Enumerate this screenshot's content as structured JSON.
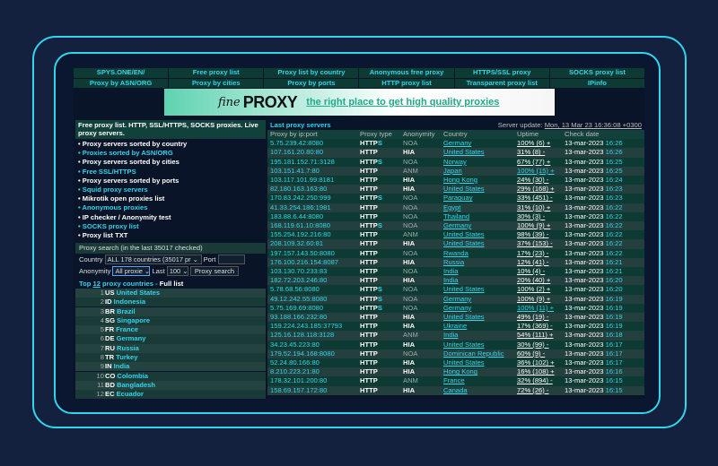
{
  "nav": [
    "SPYS.ONE/EN/",
    "Free proxy list",
    "Proxy list by country",
    "Anonymous free proxy",
    "HTTPS/SSL proxy",
    "SOCKS proxy list",
    "Proxy by ASN/ORG",
    "Proxy by cities",
    "Proxy by ports",
    "HTTP proxy list",
    "Transparent proxy list",
    "IPinfo"
  ],
  "banner": {
    "fine": "fine",
    "proxy": "PROXY",
    "tagline": "the right place to get high quality proxies"
  },
  "left": {
    "heading": "Free proxy list. HTTP, SSL/HTTPS, SOCKS proxies. Live proxy servers.",
    "menu": [
      {
        "label": "• Proxy servers sorted by country",
        "style": "w"
      },
      {
        "label": "• Proxies sorted by ASN/ORG",
        "style": "c"
      },
      {
        "label": "• Proxy servers sorted by cities",
        "style": "w"
      },
      {
        "label": "• Free SSL/HTTPS",
        "style": "c"
      },
      {
        "label": "• Proxy servers sorted by ports",
        "style": "w"
      },
      {
        "label": "• Squid proxy servers",
        "style": "c"
      },
      {
        "label": "• Mikrotik open proxies list",
        "style": "w"
      },
      {
        "label": "• Anonymous proxies",
        "style": "c"
      },
      {
        "label": "• IP checker / Anonymity test",
        "style": "w"
      },
      {
        "label": "• SOCKS proxy list",
        "style": "c"
      },
      {
        "label": "• Proxy list TXT",
        "style": "w"
      }
    ],
    "search": {
      "title": "Proxy search (in the last 35017 checked)",
      "country_label": "Country",
      "country_value": "ALL 178 countries (35017 pr ⌄",
      "port_label": "Port",
      "port_value": "",
      "anonymity_label": "Anonymity",
      "anonymity_value": "All proxie ⌄",
      "last_label": "Last",
      "last_value": "100 ⌄",
      "button": "Proxy search"
    },
    "top": {
      "prefix": "Top ",
      "count": "12",
      "mid": " proxy countries - ",
      "full": "Full list"
    },
    "countries": [
      {
        "n": "1",
        "code": "US",
        "name": "United States"
      },
      {
        "n": "2",
        "code": "ID",
        "name": "Indonesia"
      },
      {
        "n": "3",
        "code": "BR",
        "name": "Brazil"
      },
      {
        "n": "4",
        "code": "SG",
        "name": "Singapore"
      },
      {
        "n": "5",
        "code": "FR",
        "name": "France"
      },
      {
        "n": "6",
        "code": "DE",
        "name": "Germany"
      },
      {
        "n": "7",
        "code": "RU",
        "name": "Russia"
      },
      {
        "n": "8",
        "code": "TR",
        "name": "Turkey"
      },
      {
        "n": "9",
        "code": "IN",
        "name": "India"
      },
      {
        "n": "10",
        "code": "CO",
        "name": "Colombia"
      },
      {
        "n": "11",
        "code": "BD",
        "name": "Bangladesh"
      },
      {
        "n": "12",
        "code": "EC",
        "name": "Ecuador"
      }
    ]
  },
  "table": {
    "title": "Last proxy servers",
    "update_label": "Server update: ",
    "update_value": "Mon, 13 Mar 23 16:36:08 +0300",
    "columns": [
      "Proxy by ip:port",
      "Proxy type",
      "Anonymity",
      "Country",
      "Uptime",
      "Check date"
    ],
    "rows": [
      [
        "5.75.239.42:8080",
        "HTTPS",
        "NOA",
        "Germany",
        "100% (6) +",
        "13-mar-2023",
        "16:26"
      ],
      [
        "107.161.20.80:80",
        "HTTP",
        "HIA",
        "United States",
        "31% (8) -",
        "13-mar-2023",
        "16:26"
      ],
      [
        "195.181.152.71:3128",
        "HTTPS",
        "NOA",
        "Norway",
        "67% (77) +",
        "13-mar-2023",
        "16:25"
      ],
      [
        "103.151.41.7:80",
        "HTTP",
        "ANM",
        "Japan",
        "100% (15) +",
        "13-mar-2023",
        "16:25"
      ],
      [
        "103.117.101.99:8181",
        "HTTP",
        "HIA",
        "Hong Kong",
        "24% (30) -",
        "13-mar-2023",
        "16:24"
      ],
      [
        "82.180.163.163:80",
        "HTTP",
        "HIA",
        "United States",
        "29% (168) +",
        "13-mar-2023",
        "16:23"
      ],
      [
        "170.83.242.250:999",
        "HTTPS",
        "NOA",
        "Paraguay",
        "33% (451) -",
        "13-mar-2023",
        "16:23"
      ],
      [
        "41.33.254.186:1981",
        "HTTP",
        "NOA",
        "Egypt",
        "31% (10) +",
        "13-mar-2023",
        "16:22"
      ],
      [
        "183.88.6.44:8080",
        "HTTP",
        "NOA",
        "Thailand",
        "30% (3) -",
        "13-mar-2023",
        "16:22"
      ],
      [
        "168.119.61.10:8080",
        "HTTPS",
        "NOA",
        "Germany",
        "100% (9) +",
        "13-mar-2023",
        "16:22"
      ],
      [
        "155.254.192.216:80",
        "HTTP",
        "ANM",
        "United States",
        "98% (39) -",
        "13-mar-2023",
        "16:22"
      ],
      [
        "208.109.32.60:81",
        "HTTP",
        "HIA",
        "United States",
        "37% (153) -",
        "13-mar-2023",
        "16:22"
      ],
      [
        "197.157.143.50:8080",
        "HTTP",
        "NOA",
        "Rwanda",
        "17% (23) -",
        "13-mar-2023",
        "16:22"
      ],
      [
        "176.100.216.154:8087",
        "HTTP",
        "HIA",
        "Russia",
        "12% (41) -",
        "13-mar-2023",
        "16:21"
      ],
      [
        "103.130.70.233:83",
        "HTTP",
        "NOA",
        "India",
        "10% (4) -",
        "13-mar-2023",
        "16:21"
      ],
      [
        "182.72.203.246:80",
        "HTTP",
        "HIA",
        "India",
        "20% (40) +",
        "13-mar-2023",
        "16:20"
      ],
      [
        "5.78.68.56:8080",
        "HTTPS",
        "NOA",
        "United States",
        "100% (2) +",
        "13-mar-2023",
        "16:20"
      ],
      [
        "49.12.242.55:8080",
        "HTTPS",
        "NOA",
        "Germany",
        "100% (9) +",
        "13-mar-2023",
        "16:19"
      ],
      [
        "5.75.169.69:8080",
        "HTTPS",
        "NOA",
        "Germany",
        "100% (11) +",
        "13-mar-2023",
        "16:19"
      ],
      [
        "93.188.166.232:80",
        "HTTP",
        "HIA",
        "United States",
        "49% (19) -",
        "13-mar-2023",
        "16:19"
      ],
      [
        "159.224.243.185:37793",
        "HTTP",
        "HIA",
        "Ukraine",
        "17% (369) -",
        "13-mar-2023",
        "16:19"
      ],
      [
        "125.16.128.118:3128",
        "HTTP",
        "ANM",
        "India",
        "54% (111) +",
        "13-mar-2023",
        "16:18"
      ],
      [
        "34.23.45.223:80",
        "HTTP",
        "HIA",
        "United States",
        "30% (99) -",
        "13-mar-2023",
        "16:17"
      ],
      [
        "179.52.194.168:8080",
        "HTTP",
        "NOA",
        "Dominican Republic",
        "60% (9) -",
        "13-mar-2023",
        "16:17"
      ],
      [
        "52.24.80.166:80",
        "HTTP",
        "HIA",
        "United States",
        "36% (102) +",
        "13-mar-2023",
        "16:17"
      ],
      [
        "8.210.223.21:80",
        "HTTP",
        "HIA",
        "Hong Kong",
        "16% (108) +",
        "13-mar-2023",
        "16:16"
      ],
      [
        "178.32.101.200:80",
        "HTTP",
        "ANM",
        "France",
        "32% (894) -",
        "13-mar-2023",
        "16:15"
      ],
      [
        "158.69.157.172:80",
        "HTTP",
        "HIA",
        "Canada",
        "72% (26) -",
        "13-mar-2023",
        "16:15"
      ]
    ],
    "uptime_highlight_rows": [
      3,
      18
    ]
  },
  "colors": {
    "accent": "#2fd6ec",
    "frame": "#2fd6ec",
    "background": "#13213f",
    "row_dark": "#0d3a32",
    "row_light": "#24403e"
  }
}
